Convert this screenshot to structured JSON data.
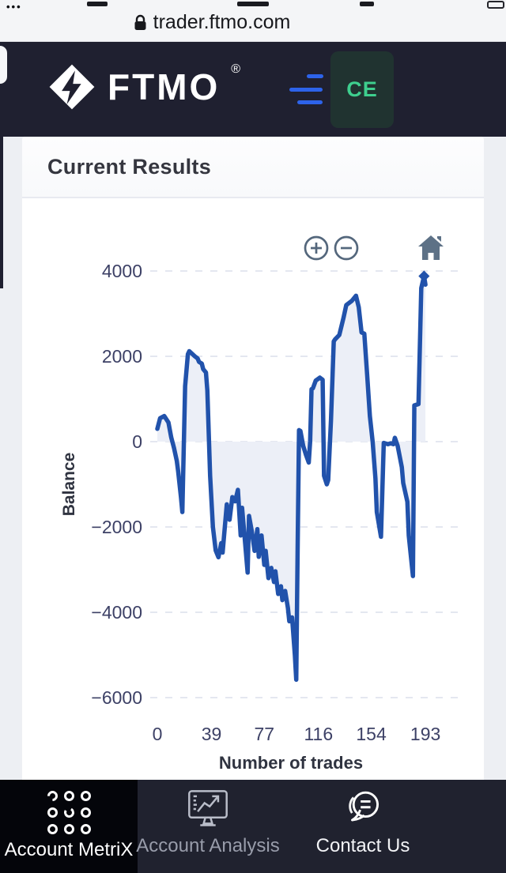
{
  "browser": {
    "url": "trader.ftmo.com"
  },
  "header": {
    "brand": "FTMO",
    "registered_mark": "®",
    "account_badge": "CE",
    "accent_blue": "#2d63ea",
    "badge_text_color": "#3ecf8e"
  },
  "page": {
    "title": "Current Results"
  },
  "chart_controls": {
    "zoom_in": "plus-circle",
    "zoom_out": "minus-circle",
    "reset": "home"
  },
  "chart_data": {
    "type": "line",
    "title": "Current Results balance curve",
    "xlabel": "Number of trades",
    "ylabel": "Balance",
    "x_ticks": [
      0,
      39,
      77,
      116,
      154,
      193
    ],
    "y_ticks": [
      4000,
      2000,
      0,
      -2000,
      -4000,
      -6000
    ],
    "y_tick_labels": [
      "4000",
      "2000",
      "0",
      "−2000",
      "−4000",
      "−6000"
    ],
    "xlim": [
      0,
      197
    ],
    "ylim": [
      -6000,
      4600
    ],
    "grid": "dashed-horizontal",
    "legend_position": "none",
    "line_color": "#2152ab",
    "fill_color": "#ECEFF7",
    "grid_color": "#e4e7f0",
    "axis_text_color": "#3d4166",
    "axis_title_color": "#2f3340",
    "end_marker": [
      192,
      3880
    ],
    "series": [
      {
        "name": "Balance",
        "points": [
          [
            0,
            300
          ],
          [
            2,
            550
          ],
          [
            5,
            600
          ],
          [
            8,
            450
          ],
          [
            10,
            100
          ],
          [
            12,
            -150
          ],
          [
            14,
            -450
          ],
          [
            15,
            -700
          ],
          [
            17,
            -1300
          ],
          [
            18,
            -1650
          ],
          [
            20,
            1300
          ],
          [
            22,
            2050
          ],
          [
            23,
            2120
          ],
          [
            25,
            2060
          ],
          [
            27,
            2000
          ],
          [
            29,
            1950
          ],
          [
            30,
            1870
          ],
          [
            32,
            1830
          ],
          [
            33,
            1700
          ],
          [
            35,
            1620
          ],
          [
            36,
            1200
          ],
          [
            38,
            -800
          ],
          [
            40,
            -2000
          ],
          [
            42,
            -2550
          ],
          [
            44,
            -2710
          ],
          [
            46,
            -2380
          ],
          [
            47,
            -2600
          ],
          [
            50,
            -1470
          ],
          [
            52,
            -1830
          ],
          [
            54,
            -1300
          ],
          [
            56,
            -1400
          ],
          [
            58,
            -1130
          ],
          [
            60,
            -2200
          ],
          [
            61,
            -1550
          ],
          [
            63,
            -2300
          ],
          [
            65,
            -3070
          ],
          [
            66,
            -1740
          ],
          [
            68,
            -2100
          ],
          [
            70,
            -2560
          ],
          [
            72,
            -2050
          ],
          [
            73,
            -2700
          ],
          [
            75,
            -2200
          ],
          [
            77,
            -2890
          ],
          [
            78,
            -2560
          ],
          [
            80,
            -3200
          ],
          [
            82,
            -2960
          ],
          [
            84,
            -3290
          ],
          [
            85,
            -3040
          ],
          [
            87,
            -3570
          ],
          [
            89,
            -3390
          ],
          [
            90,
            -3715
          ],
          [
            92,
            -3500
          ],
          [
            94,
            -3900
          ],
          [
            95,
            -4210
          ],
          [
            97,
            -4120
          ],
          [
            99,
            -5000
          ],
          [
            100,
            -5580
          ],
          [
            101,
            -2500
          ],
          [
            102,
            270
          ],
          [
            103,
            250
          ],
          [
            105,
            -100
          ],
          [
            107,
            -310
          ],
          [
            109,
            -490
          ],
          [
            110,
            0
          ],
          [
            111,
            1230
          ],
          [
            112,
            1250
          ],
          [
            114,
            1430
          ],
          [
            117,
            1500
          ],
          [
            119,
            1450
          ],
          [
            120,
            -800
          ],
          [
            122,
            -1000
          ],
          [
            123,
            -900
          ],
          [
            125,
            500
          ],
          [
            127,
            2350
          ],
          [
            128,
            2400
          ],
          [
            131,
            2500
          ],
          [
            134,
            2900
          ],
          [
            136,
            3200
          ],
          [
            140,
            3300
          ],
          [
            143,
            3420
          ],
          [
            145,
            3150
          ],
          [
            147,
            2560
          ],
          [
            149,
            2530
          ],
          [
            151,
            1590
          ],
          [
            153,
            600
          ],
          [
            155,
            0
          ],
          [
            157,
            -860
          ],
          [
            158,
            -1650
          ],
          [
            161,
            -2230
          ],
          [
            163,
            -30
          ],
          [
            166,
            -60
          ],
          [
            168,
            -40
          ],
          [
            170,
            -60
          ],
          [
            171,
            90
          ],
          [
            173,
            -100
          ],
          [
            176,
            -600
          ],
          [
            177,
            -970
          ],
          [
            180,
            -1410
          ],
          [
            181,
            -2200
          ],
          [
            184,
            -3150
          ],
          [
            185,
            850
          ],
          [
            188,
            880
          ],
          [
            190,
            3600
          ],
          [
            192,
            3880
          ],
          [
            193,
            3680
          ]
        ]
      }
    ]
  },
  "bottom_nav": {
    "items": [
      {
        "label": "Account MetriX",
        "icon": "metrix-dots-icon",
        "active": true
      },
      {
        "label": "Account Analysis",
        "icon": "monitor-chart-icon",
        "active": false
      },
      {
        "label": "Contact Us",
        "icon": "chat-bubble-icon",
        "active": false
      }
    ]
  }
}
